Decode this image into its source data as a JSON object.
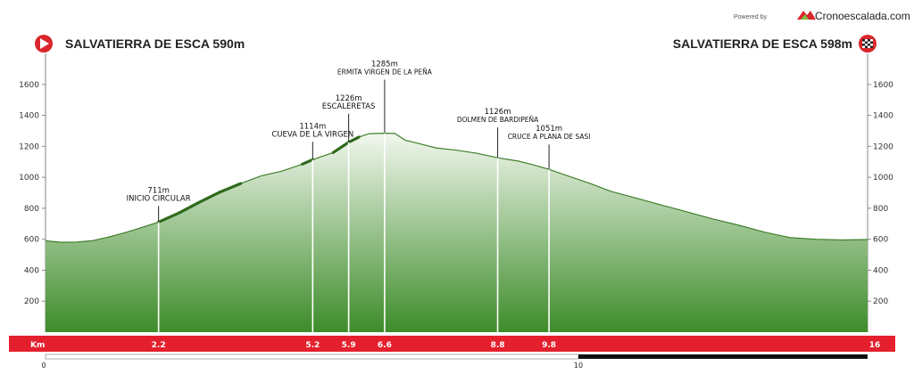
{
  "header": {
    "powered_by": "Powered by",
    "brand": "Cronoescalada.com",
    "start_title": "SALVATIERRA DE ESCA 590m",
    "end_title": "SALVATIERRA DE ESCA 598m",
    "start_icon": "play-icon",
    "end_icon": "finish-flag-icon"
  },
  "chart_data": {
    "type": "area",
    "xlabel": "Km",
    "xlim": [
      0,
      16
    ],
    "ylim": [
      0,
      1800
    ],
    "y_ticks": [
      200,
      400,
      600,
      800,
      1000,
      1200,
      1400,
      1600
    ],
    "profile": {
      "x": [
        0,
        0.3,
        0.6,
        0.9,
        1.2,
        1.5,
        1.8,
        2.2,
        2.6,
        3.0,
        3.4,
        3.8,
        4.2,
        4.6,
        5.0,
        5.2,
        5.6,
        5.9,
        6.1,
        6.3,
        6.6,
        6.8,
        7.0,
        7.3,
        7.6,
        8.0,
        8.4,
        8.8,
        9.2,
        9.5,
        9.8,
        10.2,
        10.6,
        11.0,
        11.5,
        12.0,
        12.5,
        13.0,
        13.5,
        14.0,
        14.5,
        15.0,
        15.5,
        16.0
      ],
      "y": [
        590,
        580,
        582,
        590,
        612,
        638,
        668,
        711,
        770,
        840,
        905,
        960,
        1010,
        1040,
        1085,
        1114,
        1160,
        1226,
        1260,
        1282,
        1285,
        1283,
        1240,
        1215,
        1190,
        1175,
        1155,
        1126,
        1105,
        1080,
        1051,
        1005,
        960,
        910,
        865,
        820,
        775,
        730,
        690,
        645,
        610,
        600,
        595,
        598
      ]
    },
    "km_markers": [
      {
        "km": 2.2,
        "label": "2.2"
      },
      {
        "km": 5.2,
        "label": "5.2"
      },
      {
        "km": 5.9,
        "label": "5.9"
      },
      {
        "km": 6.6,
        "label": "6.6"
      },
      {
        "km": 8.8,
        "label": "8.8"
      },
      {
        "km": 9.8,
        "label": "9.8"
      },
      {
        "km": 16,
        "label": "16"
      }
    ],
    "waypoints": [
      {
        "km": 2.2,
        "alt": 711,
        "alt_label": "711m",
        "name": "INICIO CIRCULAR",
        "size": "lg"
      },
      {
        "km": 5.2,
        "alt": 1114,
        "alt_label": "1114m",
        "name": "CUEVA DE LA VIRGEN",
        "size": "lg"
      },
      {
        "km": 5.9,
        "alt": 1226,
        "alt_label": "1226m",
        "name": "ESCALERETAS",
        "size": "lg"
      },
      {
        "km": 6.6,
        "alt": 1285,
        "alt_label": "1285m",
        "name": "ERMITA VIRGEN DE LA PEÑA",
        "size": "sm"
      },
      {
        "km": 8.8,
        "alt": 1126,
        "alt_label": "1126m",
        "name": "DOLMEN DE BARDIPEÑA",
        "size": "sm"
      },
      {
        "km": 9.8,
        "alt": 1051,
        "alt_label": "1051m",
        "name": "CRUCE A PLANA DE SASI",
        "size": "sm"
      }
    ],
    "scale_bar": {
      "labels": [
        "0",
        "10"
      ]
    },
    "colors": {
      "fill_top": "#f2f7ee",
      "fill_bottom": "#3d8c2a",
      "line": "#3f7f2a",
      "steep": "#2e6a1c",
      "km_band": "#e5202e"
    }
  }
}
